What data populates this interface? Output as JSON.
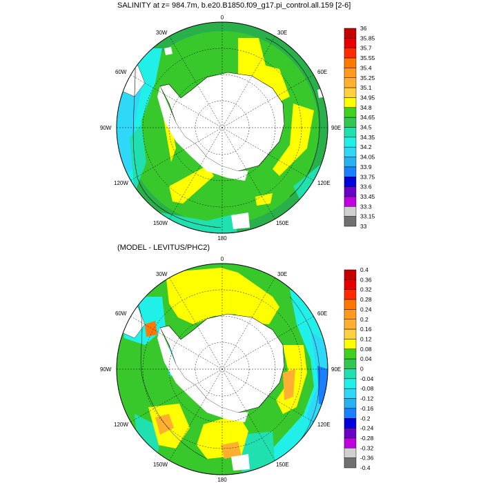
{
  "panels": [
    {
      "title": "SALINITY at z= 984.7m, b.e20.B1850.f09_g17.pi_control.all.159 [2-6]",
      "lon_labels": [
        "0",
        "30E",
        "60E",
        "90E",
        "120E",
        "150E",
        "180",
        "150W",
        "120W",
        "90W",
        "60W",
        "30W"
      ],
      "colorbar": {
        "labels": [
          "36",
          "35.85",
          "35.7",
          "35.55",
          "35.4",
          "35.25",
          "35.1",
          "34.95",
          "34.8",
          "34.65",
          "34.5",
          "34.35",
          "34.2",
          "34.05",
          "33.9",
          "33.75",
          "33.6",
          "33.45",
          "33.3",
          "33.15",
          "33"
        ],
        "colors": [
          "#c40000",
          "#e60000",
          "#ff2a00",
          "#ff7800",
          "#ff9a20",
          "#ffb030",
          "#ffd040",
          "#ffff00",
          "#40d020",
          "#30c850",
          "#20e0b0",
          "#20f0e8",
          "#30d8f8",
          "#28b0f0",
          "#1a80ff",
          "#0000dd",
          "#6a00c8",
          "#c000e0",
          "#d0d0d0",
          "#707070"
        ]
      }
    },
    {
      "title": "(MODEL - LEVITUS/PHC2)",
      "lon_labels": [
        "0",
        "30E",
        "60E",
        "90E",
        "120E",
        "150E",
        "180",
        "150W",
        "120W",
        "90W",
        "60W",
        "30W"
      ],
      "colorbar": {
        "labels": [
          "0.4",
          "0.36",
          "0.32",
          "0.28",
          "0.24",
          "0.2",
          "0.16",
          "0.12",
          "0.08",
          "0.04",
          "0",
          "-0.04",
          "-0.08",
          "-0.12",
          "-0.16",
          "-0.2",
          "-0.24",
          "-0.28",
          "-0.32",
          "-0.36",
          "-0.4"
        ],
        "colors": [
          "#c40000",
          "#e60000",
          "#ff2a00",
          "#ff7800",
          "#ff9a20",
          "#ffb030",
          "#ffd040",
          "#ffff00",
          "#40d020",
          "#30c850",
          "#20e0b0",
          "#20f0e8",
          "#30d8f8",
          "#28b0f0",
          "#1a80ff",
          "#0000dd",
          "#6a00c8",
          "#c000e0",
          "#d0d0d0",
          "#707070"
        ]
      }
    }
  ],
  "colors": {
    "ocean_green": "#38c82c",
    "dark_green": "#2ab04a",
    "teal": "#20e0b0",
    "cyan": "#20f0e8",
    "yellow": "#ffff00",
    "orange": "#ffb030",
    "land": "#ffffff"
  }
}
